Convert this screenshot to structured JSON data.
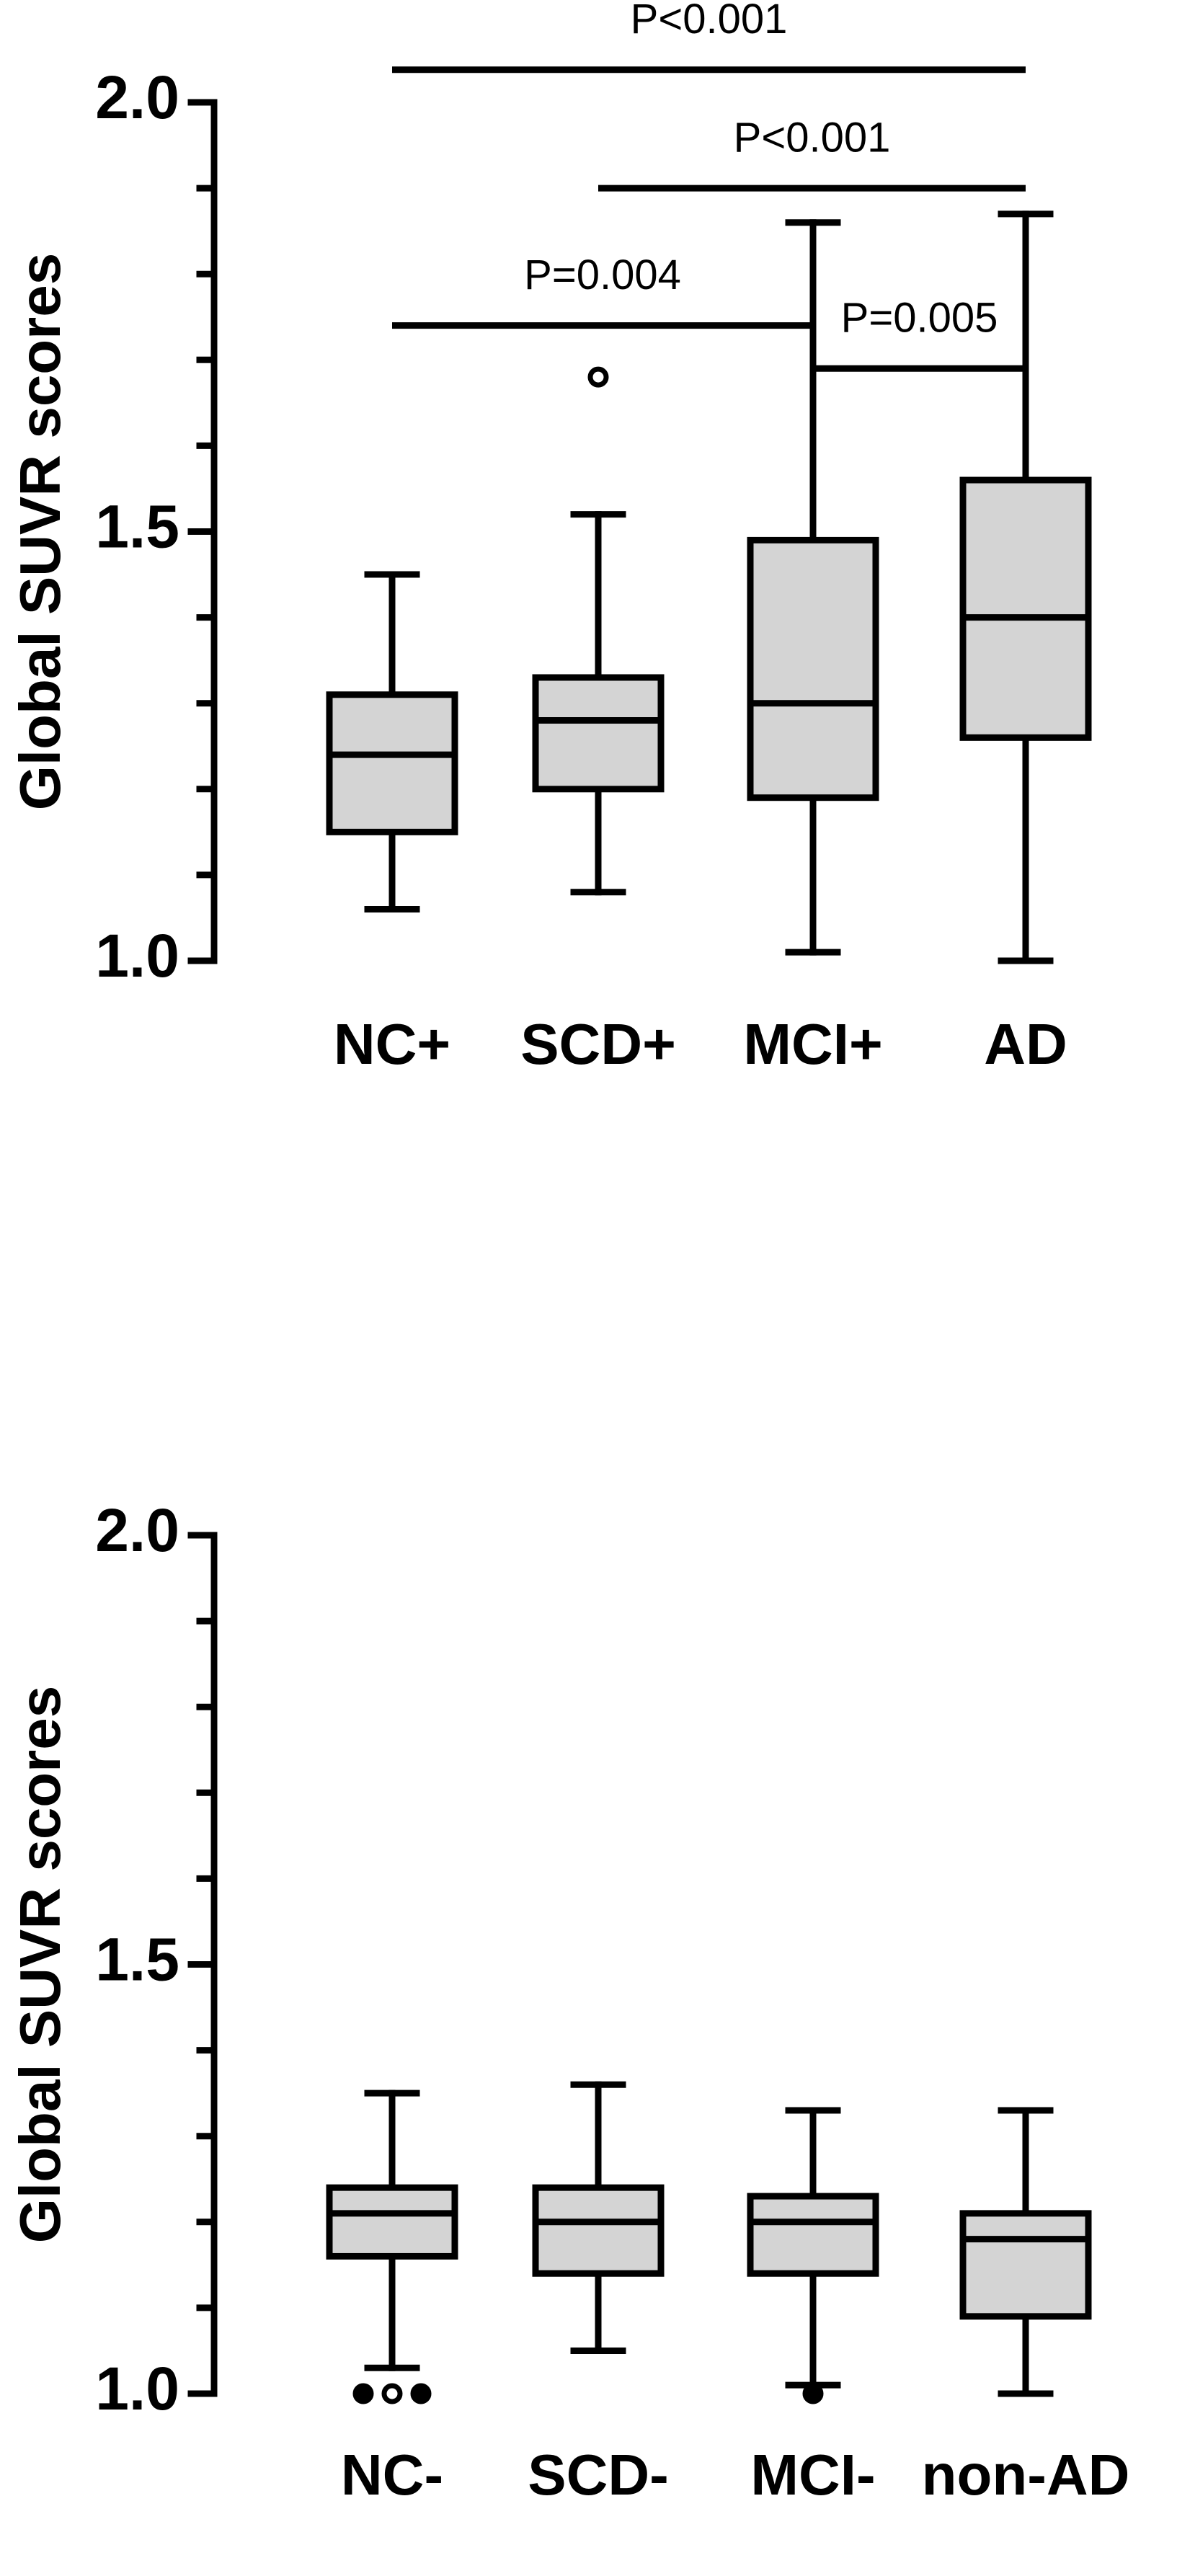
{
  "chart_data": [
    {
      "type": "box",
      "ylabel": "Global SUVR scores",
      "categories": [
        "NC+",
        "SCD+",
        "MCI+",
        "AD"
      ],
      "boxes": [
        {
          "min": 1.06,
          "q1": 1.15,
          "median": 1.24,
          "q3": 1.31,
          "max": 1.45,
          "outliers": []
        },
        {
          "min": 1.08,
          "q1": 1.2,
          "median": 1.28,
          "q3": 1.33,
          "max": 1.52,
          "outliers": [
            1.68
          ]
        },
        {
          "min": 1.01,
          "q1": 1.19,
          "median": 1.3,
          "q3": 1.49,
          "max": 1.86,
          "outliers": []
        },
        {
          "min": 1.0,
          "q1": 1.26,
          "median": 1.4,
          "q3": 1.56,
          "max": 1.87,
          "outliers": []
        }
      ],
      "color": "#d4d4d4",
      "ylim": [
        1.0,
        2.0
      ],
      "yticks": [
        {
          "value": 1.0,
          "label": "1.0"
        },
        {
          "value": 1.5,
          "label": "1.5"
        },
        {
          "value": 2.0,
          "label": "2.0"
        }
      ],
      "minor_yticks": [
        1.1,
        1.2,
        1.3,
        1.4,
        1.6,
        1.7,
        1.8,
        1.9
      ],
      "annotations": [
        {
          "text": "P<0.001",
          "between": [
            "NC+",
            "AD"
          ],
          "level": 2.038
        },
        {
          "text": "P<0.001",
          "between": [
            "SCD+",
            "AD"
          ],
          "level": 1.9
        },
        {
          "text": "P=0.004",
          "between": [
            "NC+",
            "MCI+"
          ],
          "level": 1.74
        },
        {
          "text": "P=0.005",
          "between": [
            "MCI+",
            "AD"
          ],
          "level": 1.69
        }
      ]
    },
    {
      "type": "box",
      "ylabel": "Global SUVR scores",
      "categories": [
        "NC-",
        "SCD-",
        "MCI-",
        "non-AD"
      ],
      "boxes": [
        {
          "min": 1.03,
          "q1": 1.16,
          "median": 1.21,
          "q3": 1.24,
          "max": 1.35,
          "outliers": [
            1.0,
            1.0,
            1.0
          ]
        },
        {
          "min": 1.05,
          "q1": 1.14,
          "median": 1.2,
          "q3": 1.24,
          "max": 1.36,
          "outliers": []
        },
        {
          "min": 1.01,
          "q1": 1.14,
          "median": 1.2,
          "q3": 1.23,
          "max": 1.33,
          "outliers": [
            1.0
          ]
        },
        {
          "min": 1.0,
          "q1": 1.09,
          "median": 1.18,
          "q3": 1.21,
          "max": 1.33,
          "outliers": []
        }
      ],
      "color": "#d4d4d4",
      "ylim": [
        1.0,
        2.0
      ],
      "yticks": [
        {
          "value": 1.0,
          "label": "1.0"
        },
        {
          "value": 1.5,
          "label": "1.5"
        },
        {
          "value": 2.0,
          "label": "2.0"
        }
      ],
      "minor_yticks": [
        1.1,
        1.2,
        1.3,
        1.4,
        1.6,
        1.7,
        1.8,
        1.9
      ],
      "annotations": []
    }
  ]
}
